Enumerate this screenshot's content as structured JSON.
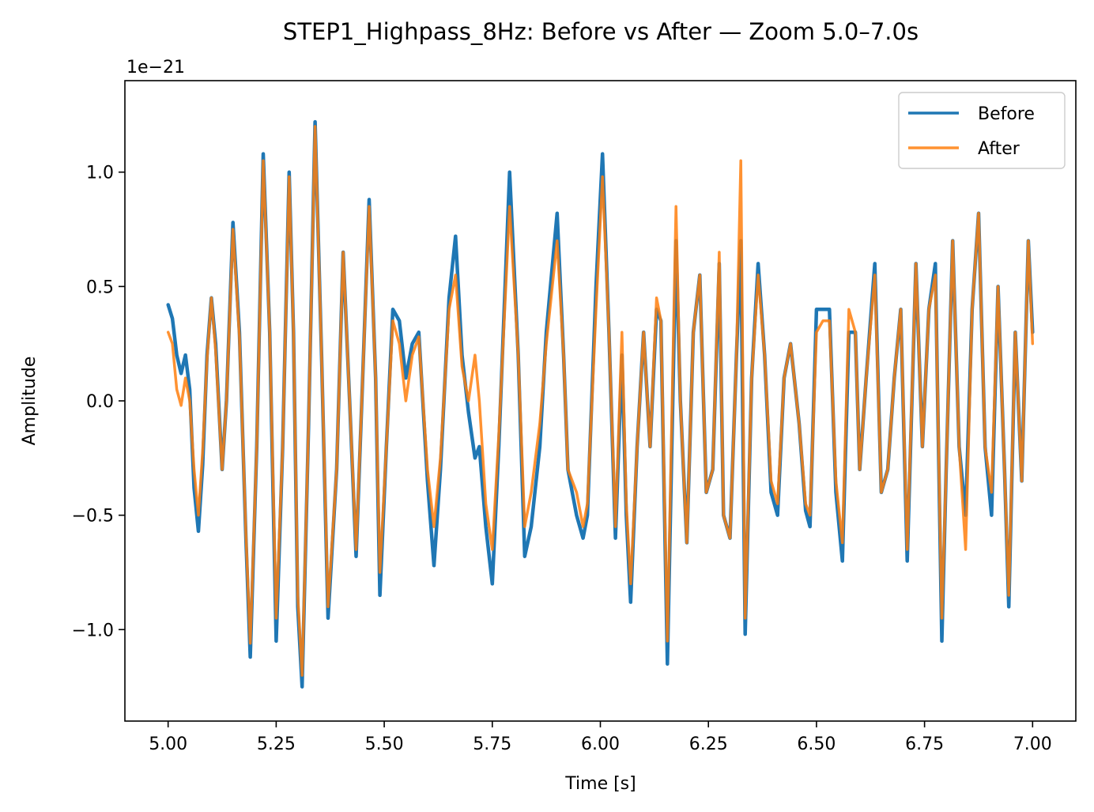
{
  "chart_data": {
    "type": "line",
    "title": "STEP1_Highpass_8Hz: Before vs After — Zoom 5.0–7.0s",
    "xlabel": "Time [s]",
    "ylabel": "Amplitude",
    "offset_text": "1e−21",
    "xlim": [
      4.9,
      7.1
    ],
    "ylim": [
      -1.4,
      1.4
    ],
    "xticks": [
      5.0,
      5.25,
      5.5,
      5.75,
      6.0,
      6.25,
      6.5,
      6.75,
      7.0
    ],
    "xtick_labels": [
      "5.00",
      "5.25",
      "5.50",
      "5.75",
      "6.00",
      "6.25",
      "6.50",
      "6.75",
      "7.00"
    ],
    "yticks": [
      -1.0,
      -0.5,
      0.0,
      0.5,
      1.0
    ],
    "ytick_labels": [
      "−1.0",
      "−0.5",
      "0.0",
      "0.5",
      "1.0"
    ],
    "grid": false,
    "legend_position": "top-right",
    "series": [
      {
        "name": "Before",
        "color": "#1f77b4",
        "points": [
          [
            5.0,
            0.42
          ],
          [
            5.01,
            0.36
          ],
          [
            5.02,
            0.2
          ],
          [
            5.03,
            0.12
          ],
          [
            5.04,
            0.2
          ],
          [
            5.05,
            0.05
          ],
          [
            5.06,
            -0.38
          ],
          [
            5.07,
            -0.57
          ],
          [
            5.08,
            -0.28
          ],
          [
            5.09,
            0.2
          ],
          [
            5.1,
            0.45
          ],
          [
            5.11,
            0.25
          ],
          [
            5.125,
            -0.3
          ],
          [
            5.135,
            0.0
          ],
          [
            5.15,
            0.78
          ],
          [
            5.165,
            0.3
          ],
          [
            5.18,
            -0.6
          ],
          [
            5.19,
            -1.12
          ],
          [
            5.205,
            -0.2
          ],
          [
            5.22,
            1.08
          ],
          [
            5.235,
            0.3
          ],
          [
            5.25,
            -1.05
          ],
          [
            5.265,
            -0.2
          ],
          [
            5.28,
            1.0
          ],
          [
            5.29,
            0.3
          ],
          [
            5.3,
            -0.9
          ],
          [
            5.31,
            -1.25
          ],
          [
            5.325,
            -0.1
          ],
          [
            5.34,
            1.22
          ],
          [
            5.355,
            0.2
          ],
          [
            5.37,
            -0.95
          ],
          [
            5.39,
            -0.3
          ],
          [
            5.405,
            0.65
          ],
          [
            5.42,
            0.0
          ],
          [
            5.435,
            -0.68
          ],
          [
            5.45,
            0.1
          ],
          [
            5.465,
            0.88
          ],
          [
            5.48,
            0.1
          ],
          [
            5.49,
            -0.85
          ],
          [
            5.505,
            -0.2
          ],
          [
            5.52,
            0.4
          ],
          [
            5.535,
            0.35
          ],
          [
            5.55,
            0.1
          ],
          [
            5.565,
            0.25
          ],
          [
            5.58,
            0.3
          ],
          [
            5.6,
            -0.35
          ],
          [
            5.615,
            -0.72
          ],
          [
            5.63,
            -0.3
          ],
          [
            5.65,
            0.45
          ],
          [
            5.665,
            0.72
          ],
          [
            5.68,
            0.2
          ],
          [
            5.695,
            -0.05
          ],
          [
            5.71,
            -0.25
          ],
          [
            5.72,
            -0.2
          ],
          [
            5.735,
            -0.55
          ],
          [
            5.75,
            -0.8
          ],
          [
            5.765,
            -0.2
          ],
          [
            5.79,
            1.0
          ],
          [
            5.81,
            0.2
          ],
          [
            5.825,
            -0.68
          ],
          [
            5.84,
            -0.55
          ],
          [
            5.86,
            -0.2
          ],
          [
            5.875,
            0.3
          ],
          [
            5.9,
            0.82
          ],
          [
            5.915,
            0.2
          ],
          [
            5.925,
            -0.3
          ],
          [
            5.945,
            -0.5
          ],
          [
            5.96,
            -0.6
          ],
          [
            5.97,
            -0.5
          ],
          [
            5.99,
            0.5
          ],
          [
            6.005,
            1.08
          ],
          [
            6.02,
            0.3
          ],
          [
            6.035,
            -0.6
          ],
          [
            6.05,
            0.2
          ],
          [
            6.06,
            -0.5
          ],
          [
            6.07,
            -0.88
          ],
          [
            6.085,
            -0.2
          ],
          [
            6.1,
            0.3
          ],
          [
            6.115,
            -0.2
          ],
          [
            6.13,
            0.4
          ],
          [
            6.14,
            0.35
          ],
          [
            6.155,
            -1.15
          ],
          [
            6.175,
            0.7
          ],
          [
            6.185,
            0.0
          ],
          [
            6.2,
            -0.62
          ],
          [
            6.215,
            0.3
          ],
          [
            6.23,
            0.55
          ],
          [
            6.245,
            -0.4
          ],
          [
            6.26,
            -0.3
          ],
          [
            6.275,
            0.6
          ],
          [
            6.285,
            -0.5
          ],
          [
            6.3,
            -0.6
          ],
          [
            6.315,
            0.2
          ],
          [
            6.325,
            0.7
          ],
          [
            6.335,
            -1.02
          ],
          [
            6.35,
            0.1
          ],
          [
            6.365,
            0.6
          ],
          [
            6.38,
            0.2
          ],
          [
            6.395,
            -0.4
          ],
          [
            6.41,
            -0.5
          ],
          [
            6.425,
            0.1
          ],
          [
            6.44,
            0.25
          ],
          [
            6.46,
            -0.1
          ],
          [
            6.475,
            -0.48
          ],
          [
            6.485,
            -0.55
          ],
          [
            6.5,
            0.4
          ],
          [
            6.515,
            0.4
          ],
          [
            6.53,
            0.4
          ],
          [
            6.545,
            -0.4
          ],
          [
            6.56,
            -0.7
          ],
          [
            6.575,
            0.3
          ],
          [
            6.59,
            0.3
          ],
          [
            6.6,
            -0.3
          ],
          [
            6.615,
            0.1
          ],
          [
            6.635,
            0.6
          ],
          [
            6.65,
            -0.4
          ],
          [
            6.665,
            -0.3
          ],
          [
            6.68,
            0.1
          ],
          [
            6.695,
            0.4
          ],
          [
            6.71,
            -0.7
          ],
          [
            6.73,
            0.6
          ],
          [
            6.745,
            -0.2
          ],
          [
            6.76,
            0.4
          ],
          [
            6.775,
            0.6
          ],
          [
            6.79,
            -1.05
          ],
          [
            6.8,
            -0.3
          ],
          [
            6.815,
            0.7
          ],
          [
            6.83,
            -0.2
          ],
          [
            6.845,
            -0.5
          ],
          [
            6.86,
            0.4
          ],
          [
            6.875,
            0.82
          ],
          [
            6.89,
            -0.2
          ],
          [
            6.905,
            -0.5
          ],
          [
            6.92,
            0.5
          ],
          [
            6.935,
            -0.3
          ],
          [
            6.945,
            -0.9
          ],
          [
            6.96,
            0.3
          ],
          [
            6.975,
            -0.35
          ],
          [
            6.99,
            0.7
          ],
          [
            7.0,
            0.3
          ]
        ]
      },
      {
        "name": "After",
        "color": "#ff7f0e",
        "points": [
          [
            5.0,
            0.3
          ],
          [
            5.01,
            0.25
          ],
          [
            5.02,
            0.05
          ],
          [
            5.03,
            -0.02
          ],
          [
            5.04,
            0.1
          ],
          [
            5.05,
            0.0
          ],
          [
            5.06,
            -0.3
          ],
          [
            5.07,
            -0.5
          ],
          [
            5.08,
            -0.22
          ],
          [
            5.09,
            0.18
          ],
          [
            5.1,
            0.45
          ],
          [
            5.11,
            0.22
          ],
          [
            5.125,
            -0.3
          ],
          [
            5.135,
            0.0
          ],
          [
            5.15,
            0.75
          ],
          [
            5.165,
            0.28
          ],
          [
            5.18,
            -0.58
          ],
          [
            5.19,
            -1.06
          ],
          [
            5.205,
            -0.2
          ],
          [
            5.22,
            1.05
          ],
          [
            5.235,
            0.3
          ],
          [
            5.25,
            -0.95
          ],
          [
            5.265,
            -0.2
          ],
          [
            5.28,
            0.98
          ],
          [
            5.29,
            0.3
          ],
          [
            5.3,
            -0.85
          ],
          [
            5.31,
            -1.2
          ],
          [
            5.325,
            -0.1
          ],
          [
            5.34,
            1.2
          ],
          [
            5.355,
            0.2
          ],
          [
            5.37,
            -0.9
          ],
          [
            5.39,
            -0.3
          ],
          [
            5.405,
            0.65
          ],
          [
            5.42,
            0.0
          ],
          [
            5.435,
            -0.65
          ],
          [
            5.45,
            0.1
          ],
          [
            5.465,
            0.85
          ],
          [
            5.48,
            0.1
          ],
          [
            5.49,
            -0.75
          ],
          [
            5.505,
            -0.2
          ],
          [
            5.52,
            0.35
          ],
          [
            5.535,
            0.25
          ],
          [
            5.55,
            0.0
          ],
          [
            5.565,
            0.2
          ],
          [
            5.58,
            0.28
          ],
          [
            5.6,
            -0.3
          ],
          [
            5.615,
            -0.55
          ],
          [
            5.63,
            -0.25
          ],
          [
            5.65,
            0.4
          ],
          [
            5.665,
            0.55
          ],
          [
            5.68,
            0.15
          ],
          [
            5.695,
            0.0
          ],
          [
            5.71,
            0.2
          ],
          [
            5.72,
            0.0
          ],
          [
            5.735,
            -0.45
          ],
          [
            5.75,
            -0.65
          ],
          [
            5.765,
            -0.15
          ],
          [
            5.79,
            0.85
          ],
          [
            5.81,
            0.2
          ],
          [
            5.825,
            -0.55
          ],
          [
            5.84,
            -0.4
          ],
          [
            5.86,
            -0.1
          ],
          [
            5.875,
            0.25
          ],
          [
            5.9,
            0.7
          ],
          [
            5.915,
            0.2
          ],
          [
            5.925,
            -0.3
          ],
          [
            5.945,
            -0.4
          ],
          [
            5.96,
            -0.55
          ],
          [
            5.97,
            -0.45
          ],
          [
            5.99,
            0.4
          ],
          [
            6.005,
            0.98
          ],
          [
            6.02,
            0.3
          ],
          [
            6.035,
            -0.55
          ],
          [
            6.05,
            0.3
          ],
          [
            6.06,
            -0.45
          ],
          [
            6.07,
            -0.8
          ],
          [
            6.085,
            -0.2
          ],
          [
            6.1,
            0.3
          ],
          [
            6.115,
            -0.2
          ],
          [
            6.13,
            0.45
          ],
          [
            6.14,
            0.35
          ],
          [
            6.155,
            -1.05
          ],
          [
            6.175,
            0.85
          ],
          [
            6.185,
            0.0
          ],
          [
            6.2,
            -0.62
          ],
          [
            6.215,
            0.3
          ],
          [
            6.23,
            0.55
          ],
          [
            6.245,
            -0.4
          ],
          [
            6.26,
            -0.3
          ],
          [
            6.275,
            0.65
          ],
          [
            6.285,
            -0.5
          ],
          [
            6.3,
            -0.6
          ],
          [
            6.315,
            0.2
          ],
          [
            6.325,
            1.05
          ],
          [
            6.335,
            -0.95
          ],
          [
            6.35,
            0.1
          ],
          [
            6.365,
            0.55
          ],
          [
            6.38,
            0.2
          ],
          [
            6.395,
            -0.35
          ],
          [
            6.41,
            -0.45
          ],
          [
            6.425,
            0.1
          ],
          [
            6.44,
            0.25
          ],
          [
            6.46,
            -0.1
          ],
          [
            6.475,
            -0.45
          ],
          [
            6.485,
            -0.5
          ],
          [
            6.5,
            0.3
          ],
          [
            6.515,
            0.35
          ],
          [
            6.53,
            0.35
          ],
          [
            6.545,
            -0.35
          ],
          [
            6.56,
            -0.62
          ],
          [
            6.575,
            0.4
          ],
          [
            6.59,
            0.3
          ],
          [
            6.6,
            -0.3
          ],
          [
            6.615,
            0.1
          ],
          [
            6.635,
            0.55
          ],
          [
            6.65,
            -0.4
          ],
          [
            6.665,
            -0.3
          ],
          [
            6.68,
            0.1
          ],
          [
            6.695,
            0.4
          ],
          [
            6.71,
            -0.65
          ],
          [
            6.73,
            0.6
          ],
          [
            6.745,
            -0.2
          ],
          [
            6.76,
            0.4
          ],
          [
            6.775,
            0.55
          ],
          [
            6.79,
            -0.95
          ],
          [
            6.8,
            -0.3
          ],
          [
            6.815,
            0.7
          ],
          [
            6.83,
            -0.2
          ],
          [
            6.845,
            -0.65
          ],
          [
            6.86,
            0.4
          ],
          [
            6.875,
            0.82
          ],
          [
            6.89,
            -0.2
          ],
          [
            6.905,
            -0.4
          ],
          [
            6.92,
            0.5
          ],
          [
            6.935,
            -0.3
          ],
          [
            6.945,
            -0.85
          ],
          [
            6.96,
            0.3
          ],
          [
            6.975,
            -0.35
          ],
          [
            6.99,
            0.7
          ],
          [
            7.0,
            0.25
          ]
        ]
      }
    ]
  }
}
